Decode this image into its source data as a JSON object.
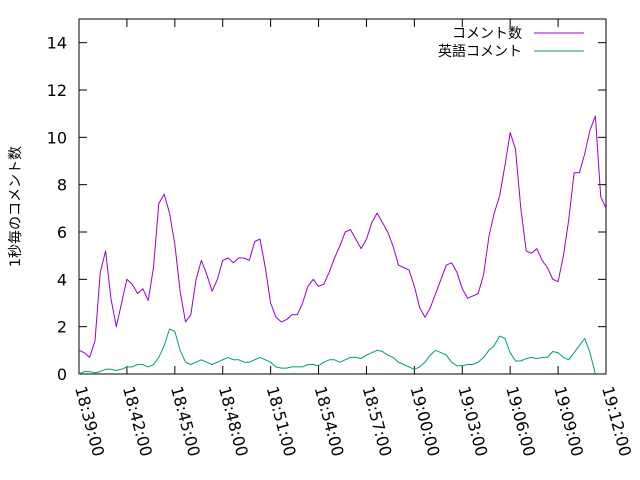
{
  "chart_data": {
    "type": "line",
    "title": "",
    "xlabel": "",
    "ylabel": "1秒毎のコメント数",
    "xlim": [
      "18:39:00",
      "19:12:00"
    ],
    "ylim": [
      0,
      15
    ],
    "y_ticks": [
      "0",
      "2",
      "4",
      "6",
      "8",
      "10",
      "12",
      "14"
    ],
    "x_ticks": [
      "18:39:00",
      "18:42:00",
      "18:45:00",
      "18:48:00",
      "18:51:00",
      "18:54:00",
      "18:57:00",
      "19:00:00",
      "19:03:00",
      "19:06:00",
      "19:09:00",
      "19:12:00"
    ],
    "grid": false,
    "legend_position": "top-right",
    "series": [
      {
        "name": "コメント数",
        "color": "#9400d3",
        "points": [
          [
            "18:39:00",
            1.0
          ],
          [
            "18:39:20",
            0.9
          ],
          [
            "18:39:40",
            0.7
          ],
          [
            "18:40:00",
            1.4
          ],
          [
            "18:40:20",
            4.3
          ],
          [
            "18:40:40",
            5.2
          ],
          [
            "18:41:00",
            3.2
          ],
          [
            "18:41:20",
            2.0
          ],
          [
            "18:41:40",
            3.0
          ],
          [
            "18:42:00",
            4.0
          ],
          [
            "18:42:20",
            3.8
          ],
          [
            "18:42:40",
            3.4
          ],
          [
            "18:43:00",
            3.6
          ],
          [
            "18:43:20",
            3.1
          ],
          [
            "18:43:40",
            4.5
          ],
          [
            "18:44:00",
            7.2
          ],
          [
            "18:44:20",
            7.6
          ],
          [
            "18:44:40",
            6.8
          ],
          [
            "18:45:00",
            5.5
          ],
          [
            "18:45:20",
            3.5
          ],
          [
            "18:45:40",
            2.2
          ],
          [
            "18:46:00",
            2.5
          ],
          [
            "18:46:20",
            4.0
          ],
          [
            "18:46:40",
            4.8
          ],
          [
            "18:47:00",
            4.2
          ],
          [
            "18:47:20",
            3.5
          ],
          [
            "18:47:40",
            4.0
          ],
          [
            "18:48:00",
            4.8
          ],
          [
            "18:48:20",
            4.9
          ],
          [
            "18:48:40",
            4.7
          ],
          [
            "18:49:00",
            4.9
          ],
          [
            "18:49:20",
            4.9
          ],
          [
            "18:49:40",
            4.8
          ],
          [
            "18:50:00",
            5.6
          ],
          [
            "18:50:20",
            5.7
          ],
          [
            "18:50:40",
            4.5
          ],
          [
            "18:51:00",
            3.0
          ],
          [
            "18:51:20",
            2.4
          ],
          [
            "18:51:40",
            2.2
          ],
          [
            "18:52:00",
            2.3
          ],
          [
            "18:52:20",
            2.5
          ],
          [
            "18:52:40",
            2.5
          ],
          [
            "18:53:00",
            3.0
          ],
          [
            "18:53:20",
            3.7
          ],
          [
            "18:53:40",
            4.0
          ],
          [
            "18:54:00",
            3.7
          ],
          [
            "18:54:20",
            3.8
          ],
          [
            "18:54:40",
            4.3
          ],
          [
            "18:55:00",
            4.9
          ],
          [
            "18:55:20",
            5.4
          ],
          [
            "18:55:40",
            6.0
          ],
          [
            "18:56:00",
            6.1
          ],
          [
            "18:56:20",
            5.7
          ],
          [
            "18:56:40",
            5.3
          ],
          [
            "18:57:00",
            5.7
          ],
          [
            "18:57:20",
            6.4
          ],
          [
            "18:57:40",
            6.8
          ],
          [
            "18:58:00",
            6.4
          ],
          [
            "18:58:20",
            6.0
          ],
          [
            "18:58:40",
            5.4
          ],
          [
            "18:59:00",
            4.6
          ],
          [
            "18:59:20",
            4.5
          ],
          [
            "18:59:40",
            4.4
          ],
          [
            "19:00:00",
            3.7
          ],
          [
            "19:00:20",
            2.8
          ],
          [
            "19:00:40",
            2.4
          ],
          [
            "19:01:00",
            2.8
          ],
          [
            "19:01:20",
            3.4
          ],
          [
            "19:01:40",
            4.0
          ],
          [
            "19:02:00",
            4.6
          ],
          [
            "19:02:20",
            4.7
          ],
          [
            "19:02:40",
            4.3
          ],
          [
            "19:03:00",
            3.6
          ],
          [
            "19:03:20",
            3.2
          ],
          [
            "19:03:40",
            3.3
          ],
          [
            "19:04:00",
            3.4
          ],
          [
            "19:04:20",
            4.2
          ],
          [
            "19:04:40",
            5.8
          ],
          [
            "19:05:00",
            6.8
          ],
          [
            "19:05:20",
            7.5
          ],
          [
            "19:05:40",
            8.8
          ],
          [
            "19:06:00",
            10.2
          ],
          [
            "19:06:20",
            9.5
          ],
          [
            "19:06:40",
            7.0
          ],
          [
            "19:07:00",
            5.2
          ],
          [
            "19:07:20",
            5.1
          ],
          [
            "19:07:40",
            5.3
          ],
          [
            "19:08:00",
            4.8
          ],
          [
            "19:08:20",
            4.5
          ],
          [
            "19:08:40",
            4.0
          ],
          [
            "19:09:00",
            3.9
          ],
          [
            "19:09:20",
            5.0
          ],
          [
            "19:09:40",
            6.5
          ],
          [
            "19:10:00",
            8.5
          ],
          [
            "19:10:20",
            8.5
          ],
          [
            "19:10:40",
            9.3
          ],
          [
            "19:11:00",
            10.3
          ],
          [
            "19:11:20",
            10.9
          ],
          [
            "19:11:40",
            7.5
          ],
          [
            "19:12:00",
            7.0
          ]
        ]
      },
      {
        "name": "英語コメント",
        "color": "#009e73",
        "points": [
          [
            "18:39:00",
            0.0
          ],
          [
            "18:39:20",
            0.1
          ],
          [
            "18:39:40",
            0.1
          ],
          [
            "18:40:00",
            0.05
          ],
          [
            "18:40:20",
            0.1
          ],
          [
            "18:40:40",
            0.2
          ],
          [
            "18:41:00",
            0.2
          ],
          [
            "18:41:20",
            0.15
          ],
          [
            "18:41:40",
            0.2
          ],
          [
            "18:42:00",
            0.3
          ],
          [
            "18:42:20",
            0.3
          ],
          [
            "18:42:40",
            0.4
          ],
          [
            "18:43:00",
            0.4
          ],
          [
            "18:43:20",
            0.3
          ],
          [
            "18:43:40",
            0.4
          ],
          [
            "18:44:00",
            0.7
          ],
          [
            "18:44:20",
            1.2
          ],
          [
            "18:44:40",
            1.9
          ],
          [
            "18:45:00",
            1.8
          ],
          [
            "18:45:20",
            1.0
          ],
          [
            "18:45:40",
            0.5
          ],
          [
            "18:46:00",
            0.4
          ],
          [
            "18:46:20",
            0.5
          ],
          [
            "18:46:40",
            0.6
          ],
          [
            "18:47:00",
            0.5
          ],
          [
            "18:47:20",
            0.4
          ],
          [
            "18:47:40",
            0.5
          ],
          [
            "18:48:00",
            0.6
          ],
          [
            "18:48:20",
            0.7
          ],
          [
            "18:48:40",
            0.6
          ],
          [
            "18:49:00",
            0.6
          ],
          [
            "18:49:20",
            0.5
          ],
          [
            "18:49:40",
            0.5
          ],
          [
            "18:50:00",
            0.6
          ],
          [
            "18:50:20",
            0.7
          ],
          [
            "18:50:40",
            0.6
          ],
          [
            "18:51:00",
            0.5
          ],
          [
            "18:51:20",
            0.3
          ],
          [
            "18:51:40",
            0.25
          ],
          [
            "18:52:00",
            0.25
          ],
          [
            "18:52:20",
            0.3
          ],
          [
            "18:52:40",
            0.3
          ],
          [
            "18:53:00",
            0.3
          ],
          [
            "18:53:20",
            0.4
          ],
          [
            "18:53:40",
            0.4
          ],
          [
            "18:54:00",
            0.35
          ],
          [
            "18:54:20",
            0.5
          ],
          [
            "18:54:40",
            0.6
          ],
          [
            "18:55:00",
            0.6
          ],
          [
            "18:55:20",
            0.5
          ],
          [
            "18:55:40",
            0.6
          ],
          [
            "18:56:00",
            0.7
          ],
          [
            "18:56:20",
            0.7
          ],
          [
            "18:56:40",
            0.65
          ],
          [
            "18:57:00",
            0.8
          ],
          [
            "18:57:20",
            0.9
          ],
          [
            "18:57:40",
            1.0
          ],
          [
            "18:58:00",
            0.95
          ],
          [
            "18:58:20",
            0.8
          ],
          [
            "18:58:40",
            0.7
          ],
          [
            "18:59:00",
            0.5
          ],
          [
            "18:59:20",
            0.4
          ],
          [
            "18:59:40",
            0.3
          ],
          [
            "19:00:00",
            0.2
          ],
          [
            "19:00:20",
            0.3
          ],
          [
            "19:00:40",
            0.5
          ],
          [
            "19:01:00",
            0.8
          ],
          [
            "19:01:20",
            1.0
          ],
          [
            "19:01:40",
            0.9
          ],
          [
            "19:02:00",
            0.8
          ],
          [
            "19:02:20",
            0.5
          ],
          [
            "19:02:40",
            0.35
          ],
          [
            "19:03:00",
            0.35
          ],
          [
            "19:03:20",
            0.4
          ],
          [
            "19:03:40",
            0.4
          ],
          [
            "19:04:00",
            0.5
          ],
          [
            "19:04:20",
            0.7
          ],
          [
            "19:04:40",
            1.0
          ],
          [
            "19:05:00",
            1.2
          ],
          [
            "19:05:20",
            1.6
          ],
          [
            "19:05:40",
            1.5
          ],
          [
            "19:06:00",
            0.9
          ],
          [
            "19:06:20",
            0.55
          ],
          [
            "19:06:40",
            0.55
          ],
          [
            "19:07:00",
            0.65
          ],
          [
            "19:07:20",
            0.7
          ],
          [
            "19:07:40",
            0.65
          ],
          [
            "19:08:00",
            0.7
          ],
          [
            "19:08:20",
            0.7
          ],
          [
            "19:08:40",
            0.95
          ],
          [
            "19:09:00",
            0.9
          ],
          [
            "19:09:20",
            0.7
          ],
          [
            "19:09:40",
            0.6
          ],
          [
            "19:10:00",
            0.9
          ],
          [
            "19:10:20",
            1.2
          ],
          [
            "19:10:40",
            1.5
          ],
          [
            "19:11:00",
            0.9
          ],
          [
            "19:11:20",
            0.0
          ]
        ]
      }
    ]
  }
}
